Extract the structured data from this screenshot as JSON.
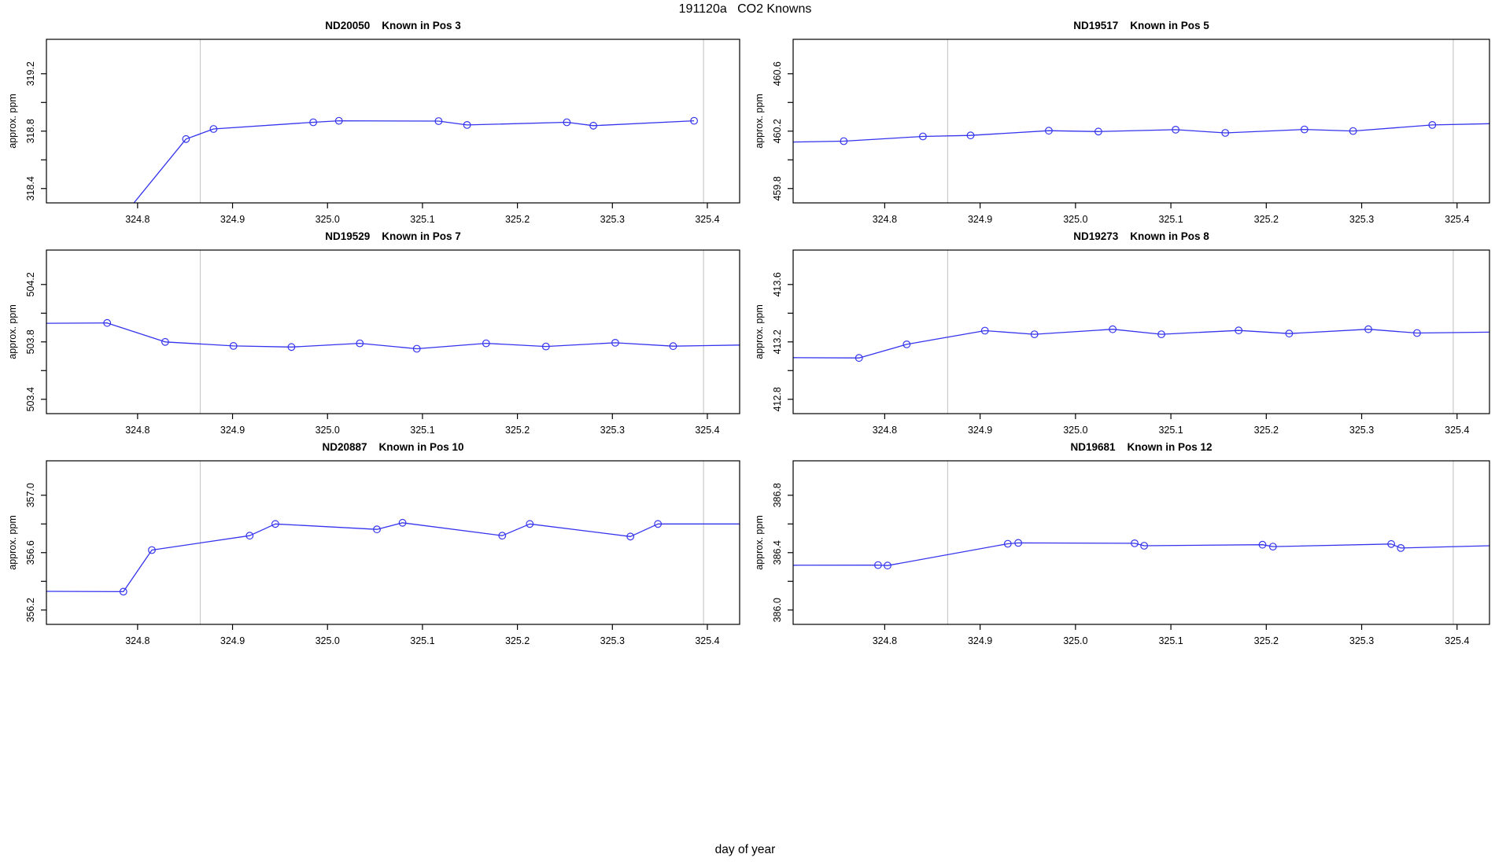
{
  "page_title": "191120a   CO2 Knowns",
  "xlabel": "day of year",
  "ylabel": "approx. ppm",
  "colors": {
    "line": "#3434ee",
    "marker": "#3434ee",
    "vline": "#c9c9c9",
    "axis": "#000000",
    "text": "#000000",
    "background": "#ffffff"
  },
  "axes": {
    "xlim": [
      324.704,
      325.434
    ],
    "xticks": [
      324.8,
      324.9,
      325.0,
      325.1,
      325.2,
      325.3,
      325.4
    ],
    "xtick_labels": [
      "324.8",
      "324.9",
      "325.0",
      "325.1",
      "325.2",
      "325.3",
      "325.4"
    ],
    "vlines": [
      324.866,
      325.396
    ],
    "grid": "off",
    "legend": "none"
  },
  "chart_data": [
    {
      "type": "line",
      "title": "ND20050    Known in Pos 3",
      "sample_id": "ND20050",
      "position_label": "Known in Pos 3",
      "ylim": [
        318.3,
        319.44
      ],
      "yticks": [
        318.4,
        318.6,
        318.8,
        319.0,
        319.2
      ],
      "ytick_labels": [
        "318.4",
        "",
        "318.8",
        "",
        "319.2"
      ],
      "points": [
        [
          324.79,
          318.25,
          0
        ],
        [
          324.851,
          318.745,
          1
        ],
        [
          324.88,
          318.815,
          1
        ],
        [
          324.985,
          318.862,
          1
        ],
        [
          325.012,
          318.872,
          1
        ],
        [
          325.117,
          318.87,
          1
        ],
        [
          325.147,
          318.843,
          1
        ],
        [
          325.252,
          318.862,
          1
        ],
        [
          325.28,
          318.838,
          1
        ],
        [
          325.386,
          318.872,
          1
        ]
      ]
    },
    {
      "type": "line",
      "title": "ND19517    Known in Pos 5",
      "sample_id": "ND19517",
      "position_label": "Known in Pos 5",
      "ylim": [
        459.7,
        460.84
      ],
      "yticks": [
        459.8,
        460.0,
        460.2,
        460.4,
        460.6
      ],
      "ytick_labels": [
        "459.8",
        "",
        "460.2",
        "",
        "460.6"
      ],
      "points": [
        [
          324.704,
          460.124,
          0
        ],
        [
          324.757,
          460.13,
          1
        ],
        [
          324.84,
          460.163,
          1
        ],
        [
          324.89,
          460.17,
          1
        ],
        [
          324.972,
          460.203,
          1
        ],
        [
          325.024,
          460.197,
          1
        ],
        [
          325.105,
          460.21,
          1
        ],
        [
          325.157,
          460.188,
          1
        ],
        [
          325.24,
          460.212,
          1
        ],
        [
          325.291,
          460.201,
          1
        ],
        [
          325.374,
          460.243,
          1
        ],
        [
          325.434,
          460.252,
          0
        ]
      ]
    },
    {
      "type": "line",
      "title": "ND19529    Known in Pos 7",
      "sample_id": "ND19529",
      "position_label": "Known in Pos 7",
      "ylim": [
        503.3,
        504.44
      ],
      "yticks": [
        503.4,
        503.6,
        503.8,
        504.0,
        504.2
      ],
      "ytick_labels": [
        "503.4",
        "",
        "503.8",
        "",
        "504.2"
      ],
      "points": [
        [
          324.704,
          503.93,
          0
        ],
        [
          324.768,
          503.932,
          1
        ],
        [
          324.829,
          503.8,
          1
        ],
        [
          324.901,
          503.772,
          1
        ],
        [
          324.962,
          503.764,
          1
        ],
        [
          325.034,
          503.79,
          1
        ],
        [
          325.094,
          503.752,
          1
        ],
        [
          325.167,
          503.79,
          1
        ],
        [
          325.23,
          503.768,
          1
        ],
        [
          325.303,
          503.794,
          1
        ],
        [
          325.364,
          503.77,
          1
        ],
        [
          325.434,
          503.778,
          0
        ]
      ]
    },
    {
      "type": "line",
      "title": "ND19273    Known in Pos 8",
      "sample_id": "ND19273",
      "position_label": "Known in Pos 8",
      "ylim": [
        412.7,
        413.84
      ],
      "yticks": [
        412.8,
        413.0,
        413.2,
        413.4,
        413.6
      ],
      "ytick_labels": [
        "412.8",
        "",
        "413.2",
        "",
        "413.6"
      ],
      "points": [
        [
          324.704,
          413.09,
          0
        ],
        [
          324.773,
          413.088,
          1
        ],
        [
          324.823,
          413.183,
          1
        ],
        [
          324.905,
          413.278,
          1
        ],
        [
          324.957,
          413.253,
          1
        ],
        [
          325.039,
          413.288,
          1
        ],
        [
          325.09,
          413.253,
          1
        ],
        [
          325.171,
          413.28,
          1
        ],
        [
          325.224,
          413.258,
          1
        ],
        [
          325.307,
          413.288,
          1
        ],
        [
          325.358,
          413.262,
          1
        ],
        [
          325.434,
          413.268,
          0
        ]
      ]
    },
    {
      "type": "line",
      "title": "ND20887    Known in Pos 10",
      "sample_id": "ND20887",
      "position_label": "Known in Pos 10",
      "ylim": [
        356.1,
        357.24
      ],
      "yticks": [
        356.2,
        356.4,
        356.6,
        356.8,
        357.0
      ],
      "ytick_labels": [
        "356.2",
        "",
        "356.6",
        "",
        "357.0"
      ],
      "points": [
        [
          324.704,
          356.33,
          0
        ],
        [
          324.785,
          356.328,
          1
        ],
        [
          324.815,
          356.618,
          1
        ],
        [
          324.918,
          356.718,
          1
        ],
        [
          324.945,
          356.8,
          1
        ],
        [
          325.052,
          356.762,
          1
        ],
        [
          325.079,
          356.808,
          1
        ],
        [
          325.184,
          356.718,
          1
        ],
        [
          325.213,
          356.8,
          1
        ],
        [
          325.319,
          356.712,
          1
        ],
        [
          325.348,
          356.8,
          1
        ],
        [
          325.434,
          356.8,
          0
        ]
      ]
    },
    {
      "type": "line",
      "title": "ND19681    Known in Pos 12",
      "sample_id": "ND19681",
      "position_label": "Known in Pos 12",
      "ylim": [
        385.9,
        387.04
      ],
      "yticks": [
        386.0,
        386.2,
        386.4,
        386.6,
        386.8
      ],
      "ytick_labels": [
        "386.0",
        "",
        "386.4",
        "",
        "386.8"
      ],
      "points": [
        [
          324.704,
          386.312,
          0
        ],
        [
          324.793,
          386.313,
          1
        ],
        [
          324.803,
          386.31,
          1
        ],
        [
          324.929,
          386.462,
          1
        ],
        [
          324.94,
          386.468,
          1
        ],
        [
          325.062,
          386.465,
          1
        ],
        [
          325.072,
          386.448,
          1
        ],
        [
          325.196,
          386.455,
          1
        ],
        [
          325.207,
          386.442,
          1
        ],
        [
          325.331,
          386.46,
          1
        ],
        [
          325.341,
          386.432,
          1
        ],
        [
          325.434,
          386.448,
          0
        ]
      ]
    }
  ]
}
